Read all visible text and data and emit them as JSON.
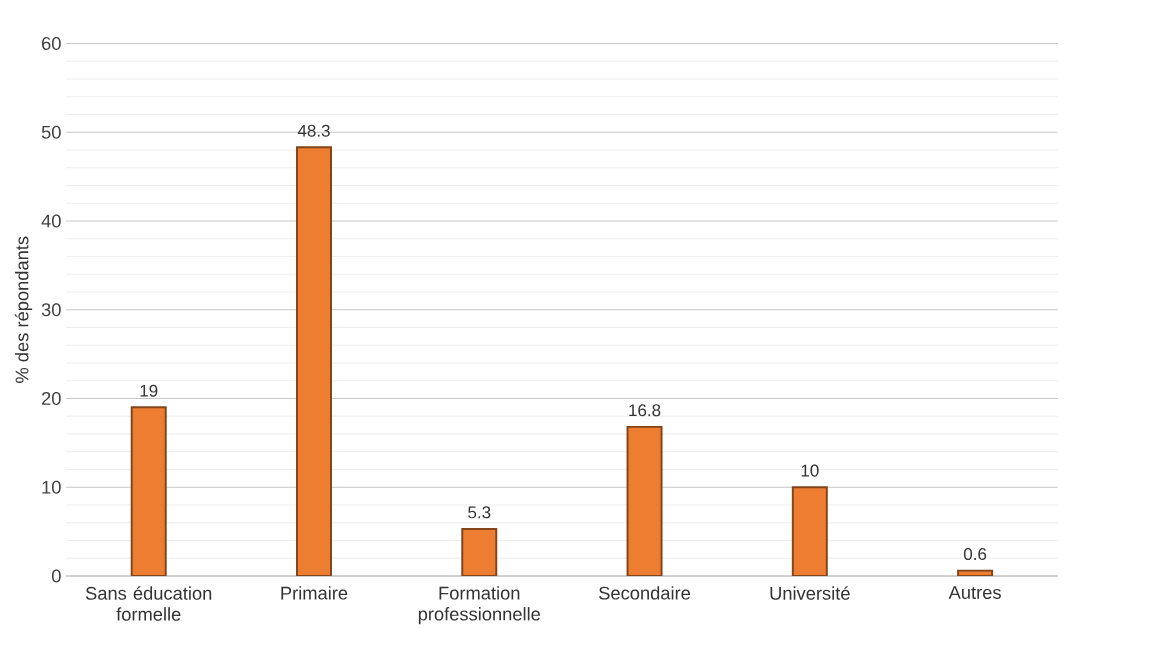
{
  "chart_data": {
    "type": "bar",
    "ylabel": "% des répondants",
    "categories": [
      "Sans éducation formelle",
      "Primaire",
      "Formation professionnelle",
      "Secondaire",
      "Université",
      "Autres"
    ],
    "values": [
      19,
      48.3,
      5.3,
      16.8,
      10,
      0.6
    ],
    "color": "#ed7d31",
    "ylim": [
      0,
      60
    ],
    "yticks": [
      0,
      10,
      20,
      30,
      40,
      50,
      60
    ],
    "grid": "y",
    "data_labels": true
  }
}
